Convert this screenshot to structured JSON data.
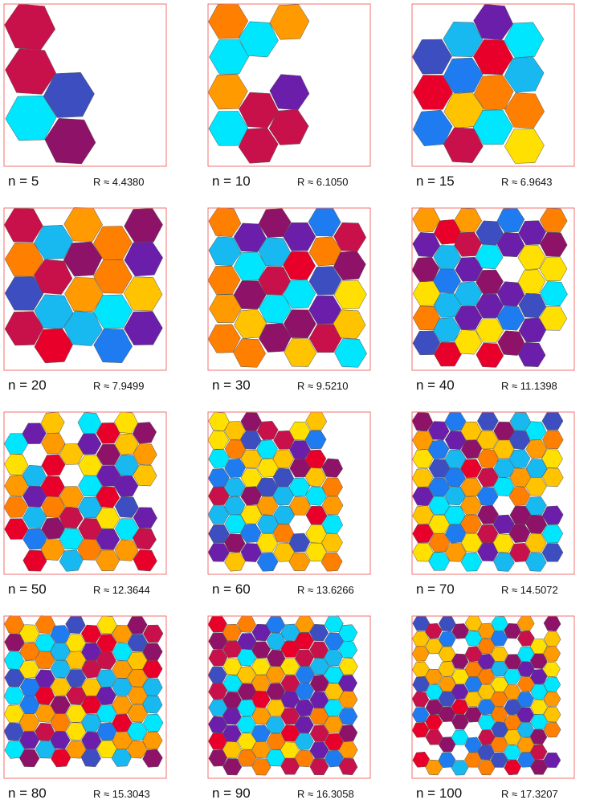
{
  "palette": [
    "#ffe000",
    "#8e1268",
    "#3d4ec0",
    "#18b8f0",
    "#ff9a00",
    "#6a1eaa",
    "#1e7cf0",
    "#ffc300",
    "#c8104a",
    "#00e6ff",
    "#e8002a",
    "#ff8000"
  ],
  "panels": [
    {
      "n_label": "n = 5",
      "r_label": "R ≈ 4.4380",
      "hex_count": 5
    },
    {
      "n_label": "n = 10",
      "r_label": "R ≈ 6.1050",
      "hex_count": 10
    },
    {
      "n_label": "n = 15",
      "r_label": "R ≈ 6.9643",
      "hex_count": 15
    },
    {
      "n_label": "n = 20",
      "r_label": "R ≈ 7.9499",
      "hex_count": 20
    },
    {
      "n_label": "n = 30",
      "r_label": "R ≈ 9.5210",
      "hex_count": 30
    },
    {
      "n_label": "n = 40",
      "r_label": "R ≈ 11.1398",
      "hex_count": 40
    },
    {
      "n_label": "n = 50",
      "r_label": "R ≈ 12.3644",
      "hex_count": 50
    },
    {
      "n_label": "n = 60",
      "r_label": "R ≈ 13.6266",
      "hex_count": 60
    },
    {
      "n_label": "n = 70",
      "r_label": "R ≈ 14.5072",
      "hex_count": 70
    },
    {
      "n_label": "n = 80",
      "r_label": "R ≈ 15.3043",
      "hex_count": 80
    },
    {
      "n_label": "n = 90",
      "r_label": "R ≈ 16.3058",
      "hex_count": 90
    },
    {
      "n_label": "n = 100",
      "r_label": "R ≈ 17.3207",
      "hex_count": 100
    }
  ]
}
